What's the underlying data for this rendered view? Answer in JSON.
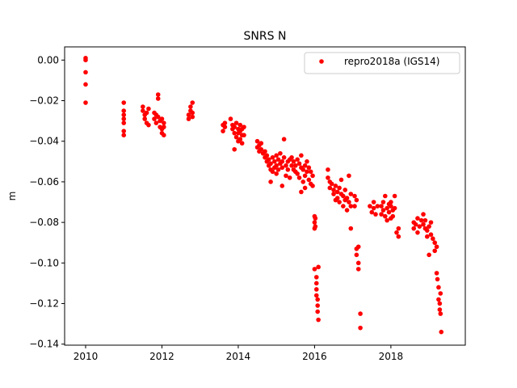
{
  "chart_data": {
    "type": "scatter",
    "title": "SNRS N",
    "xlabel": "",
    "ylabel": "m",
    "xlim": [
      2009.45,
      2019.95
    ],
    "ylim": [
      -0.1405,
      0.0065
    ],
    "xticks": [
      2010,
      2012,
      2014,
      2016,
      2018
    ],
    "xtick_labels": [
      "2010",
      "2012",
      "2014",
      "2016",
      "2018"
    ],
    "yticks": [
      0.0,
      -0.02,
      -0.04,
      -0.06,
      -0.08,
      -0.1,
      -0.12,
      -0.14
    ],
    "ytick_labels": [
      "0.00",
      "−0.02",
      "−0.04",
      "−0.06",
      "−0.08",
      "−0.10",
      "−0.12",
      "−0.14"
    ],
    "grid": false,
    "legend_position": "upper right",
    "series": [
      {
        "name": "repro2018a (IGS14)",
        "color": "#ff0000",
        "marker": "circle",
        "points": [
          [
            2010.0,
            0.001
          ],
          [
            2010.0,
            0.0
          ],
          [
            2010.0,
            -0.006
          ],
          [
            2010.0,
            -0.012
          ],
          [
            2010.0,
            -0.021
          ],
          [
            2011.0,
            -0.021
          ],
          [
            2011.0,
            -0.025
          ],
          [
            2011.0,
            -0.027
          ],
          [
            2011.0,
            -0.029
          ],
          [
            2011.0,
            -0.031
          ],
          [
            2011.0,
            -0.035
          ],
          [
            2011.0,
            -0.037
          ],
          [
            2011.5,
            -0.023
          ],
          [
            2011.5,
            -0.025
          ],
          [
            2011.55,
            -0.027
          ],
          [
            2011.55,
            -0.029
          ],
          [
            2011.6,
            -0.031
          ],
          [
            2011.6,
            -0.026
          ],
          [
            2011.65,
            -0.032
          ],
          [
            2011.65,
            -0.024
          ],
          [
            2011.8,
            -0.026
          ],
          [
            2011.8,
            -0.029
          ],
          [
            2011.85,
            -0.027
          ],
          [
            2011.85,
            -0.031
          ],
          [
            2011.9,
            -0.017
          ],
          [
            2011.9,
            -0.019
          ],
          [
            2011.9,
            -0.028
          ],
          [
            2011.95,
            -0.03
          ],
          [
            2011.95,
            -0.033
          ],
          [
            2012.0,
            -0.029
          ],
          [
            2012.0,
            -0.034
          ],
          [
            2012.0,
            -0.036
          ],
          [
            2012.05,
            -0.031
          ],
          [
            2012.05,
            -0.037
          ],
          [
            2012.05,
            -0.033
          ],
          [
            2012.7,
            -0.029
          ],
          [
            2012.7,
            -0.027
          ],
          [
            2012.75,
            -0.025
          ],
          [
            2012.75,
            -0.023
          ],
          [
            2012.8,
            -0.021
          ],
          [
            2012.8,
            -0.026
          ],
          [
            2012.8,
            -0.028
          ],
          [
            2013.6,
            -0.032
          ],
          [
            2013.6,
            -0.035
          ],
          [
            2013.65,
            -0.033
          ],
          [
            2013.65,
            -0.031
          ],
          [
            2013.8,
            -0.029
          ],
          [
            2013.85,
            -0.032
          ],
          [
            2013.85,
            -0.034
          ],
          [
            2013.9,
            -0.036
          ],
          [
            2013.9,
            -0.033
          ],
          [
            2013.95,
            -0.031
          ],
          [
            2013.95,
            -0.038
          ],
          [
            2014.0,
            -0.034
          ],
          [
            2014.0,
            -0.036
          ],
          [
            2014.0,
            -0.04
          ],
          [
            2014.05,
            -0.032
          ],
          [
            2014.05,
            -0.035
          ],
          [
            2014.05,
            -0.039
          ],
          [
            2014.1,
            -0.034
          ],
          [
            2014.1,
            -0.037
          ],
          [
            2014.1,
            -0.041
          ],
          [
            2013.9,
            -0.044
          ],
          [
            2014.15,
            -0.037
          ],
          [
            2014.15,
            -0.033
          ],
          [
            2014.5,
            -0.04
          ],
          [
            2014.5,
            -0.043
          ],
          [
            2014.55,
            -0.042
          ],
          [
            2014.55,
            -0.045
          ],
          [
            2014.6,
            -0.044
          ],
          [
            2014.6,
            -0.041
          ],
          [
            2014.65,
            -0.046
          ],
          [
            2014.7,
            -0.048
          ],
          [
            2014.7,
            -0.045
          ],
          [
            2014.75,
            -0.05
          ],
          [
            2014.75,
            -0.047
          ],
          [
            2014.8,
            -0.052
          ],
          [
            2014.8,
            -0.049
          ],
          [
            2014.85,
            -0.051
          ],
          [
            2014.85,
            -0.054
          ],
          [
            2014.9,
            -0.048
          ],
          [
            2014.9,
            -0.055
          ],
          [
            2014.95,
            -0.05
          ],
          [
            2014.95,
            -0.053
          ],
          [
            2015.0,
            -0.047
          ],
          [
            2015.0,
            -0.052
          ],
          [
            2015.0,
            -0.056
          ],
          [
            2015.05,
            -0.049
          ],
          [
            2015.05,
            -0.054
          ],
          [
            2015.1,
            -0.046
          ],
          [
            2015.1,
            -0.051
          ],
          [
            2015.15,
            -0.05
          ],
          [
            2015.15,
            -0.053
          ],
          [
            2015.2,
            -0.039
          ],
          [
            2015.2,
            -0.048
          ],
          [
            2015.25,
            -0.052
          ],
          [
            2015.25,
            -0.057
          ],
          [
            2015.3,
            -0.05
          ],
          [
            2015.3,
            -0.054
          ],
          [
            2015.35,
            -0.049
          ],
          [
            2015.35,
            -0.058
          ],
          [
            2014.85,
            -0.06
          ],
          [
            2015.15,
            -0.062
          ],
          [
            2015.4,
            -0.048
          ],
          [
            2015.4,
            -0.052
          ],
          [
            2015.45,
            -0.05
          ],
          [
            2015.45,
            -0.054
          ],
          [
            2015.5,
            -0.052
          ],
          [
            2015.5,
            -0.055
          ],
          [
            2015.55,
            -0.049
          ],
          [
            2015.55,
            -0.056
          ],
          [
            2015.6,
            -0.051
          ],
          [
            2015.6,
            -0.058
          ],
          [
            2015.65,
            -0.047
          ],
          [
            2015.65,
            -0.053
          ],
          [
            2015.7,
            -0.054
          ],
          [
            2015.7,
            -0.06
          ],
          [
            2015.75,
            -0.052
          ],
          [
            2015.75,
            -0.057
          ],
          [
            2015.8,
            -0.05
          ],
          [
            2015.8,
            -0.055
          ],
          [
            2015.85,
            -0.053
          ],
          [
            2015.85,
            -0.059
          ],
          [
            2015.9,
            -0.055
          ],
          [
            2015.9,
            -0.061
          ],
          [
            2015.65,
            -0.065
          ],
          [
            2015.75,
            -0.063
          ],
          [
            2015.95,
            -0.057
          ],
          [
            2015.95,
            -0.062
          ],
          [
            2016.0,
            -0.077
          ],
          [
            2016.0,
            -0.08
          ],
          [
            2016.0,
            -0.083
          ],
          [
            2016.02,
            -0.078
          ],
          [
            2016.02,
            -0.082
          ],
          [
            2016.0,
            -0.103
          ],
          [
            2016.05,
            -0.107
          ],
          [
            2016.05,
            -0.11
          ],
          [
            2016.05,
            -0.113
          ],
          [
            2016.05,
            -0.116
          ],
          [
            2016.08,
            -0.118
          ],
          [
            2016.08,
            -0.121
          ],
          [
            2016.08,
            -0.124
          ],
          [
            2016.1,
            -0.128
          ],
          [
            2016.1,
            -0.102
          ],
          [
            2016.35,
            -0.054
          ],
          [
            2016.35,
            -0.058
          ],
          [
            2016.4,
            -0.06
          ],
          [
            2016.4,
            -0.063
          ],
          [
            2016.45,
            -0.061
          ],
          [
            2016.5,
            -0.064
          ],
          [
            2016.5,
            -0.066
          ],
          [
            2016.55,
            -0.062
          ],
          [
            2016.55,
            -0.069
          ],
          [
            2016.6,
            -0.065
          ],
          [
            2016.6,
            -0.068
          ],
          [
            2016.65,
            -0.063
          ],
          [
            2016.65,
            -0.07
          ],
          [
            2016.7,
            -0.066
          ],
          [
            2016.7,
            -0.059
          ],
          [
            2016.75,
            -0.067
          ],
          [
            2016.75,
            -0.072
          ],
          [
            2016.8,
            -0.064
          ],
          [
            2016.8,
            -0.069
          ],
          [
            2016.85,
            -0.068
          ],
          [
            2016.85,
            -0.074
          ],
          [
            2016.9,
            -0.057
          ],
          [
            2016.9,
            -0.07
          ],
          [
            2016.95,
            -0.066
          ],
          [
            2016.95,
            -0.072
          ],
          [
            2016.95,
            -0.083
          ],
          [
            2017.05,
            -0.067
          ],
          [
            2017.05,
            -0.072
          ],
          [
            2017.1,
            -0.069
          ],
          [
            2017.1,
            -0.093
          ],
          [
            2017.1,
            -0.096
          ],
          [
            2017.15,
            -0.1
          ],
          [
            2017.15,
            -0.103
          ],
          [
            2017.15,
            -0.092
          ],
          [
            2017.2,
            -0.125
          ],
          [
            2017.2,
            -0.132
          ],
          [
            2017.45,
            -0.072
          ],
          [
            2017.5,
            -0.075
          ],
          [
            2017.55,
            -0.07
          ],
          [
            2017.55,
            -0.073
          ],
          [
            2017.6,
            -0.076
          ],
          [
            2017.65,
            -0.072
          ],
          [
            2017.75,
            -0.072
          ],
          [
            2017.75,
            -0.076
          ],
          [
            2017.8,
            -0.07
          ],
          [
            2017.8,
            -0.074
          ],
          [
            2017.85,
            -0.067
          ],
          [
            2017.85,
            -0.077
          ],
          [
            2017.9,
            -0.073
          ],
          [
            2017.9,
            -0.079
          ],
          [
            2017.95,
            -0.071
          ],
          [
            2017.95,
            -0.075
          ],
          [
            2018.0,
            -0.072
          ],
          [
            2018.0,
            -0.078
          ],
          [
            2018.0,
            -0.07
          ],
          [
            2018.05,
            -0.074
          ],
          [
            2018.05,
            -0.077
          ],
          [
            2018.1,
            -0.073
          ],
          [
            2018.1,
            -0.067
          ],
          [
            2018.15,
            -0.085
          ],
          [
            2018.2,
            -0.083
          ],
          [
            2018.2,
            -0.087
          ],
          [
            2018.6,
            -0.08
          ],
          [
            2018.6,
            -0.083
          ],
          [
            2018.65,
            -0.081
          ],
          [
            2018.7,
            -0.078
          ],
          [
            2018.7,
            -0.085
          ],
          [
            2018.75,
            -0.082
          ],
          [
            2018.8,
            -0.079
          ],
          [
            2018.85,
            -0.081
          ],
          [
            2018.85,
            -0.076
          ],
          [
            2018.9,
            -0.083
          ],
          [
            2018.9,
            -0.079
          ],
          [
            2018.95,
            -0.084
          ],
          [
            2018.95,
            -0.087
          ],
          [
            2019.0,
            -0.082
          ],
          [
            2019.0,
            -0.096
          ],
          [
            2019.05,
            -0.086
          ],
          [
            2019.05,
            -0.08
          ],
          [
            2019.1,
            -0.088
          ],
          [
            2019.15,
            -0.09
          ],
          [
            2019.15,
            -0.094
          ],
          [
            2019.2,
            -0.092
          ],
          [
            2019.2,
            -0.105
          ],
          [
            2019.22,
            -0.108
          ],
          [
            2019.25,
            -0.112
          ],
          [
            2019.25,
            -0.118
          ],
          [
            2019.28,
            -0.12
          ],
          [
            2019.28,
            -0.123
          ],
          [
            2019.3,
            -0.115
          ],
          [
            2019.3,
            -0.125
          ],
          [
            2019.32,
            -0.134
          ]
        ]
      }
    ]
  }
}
